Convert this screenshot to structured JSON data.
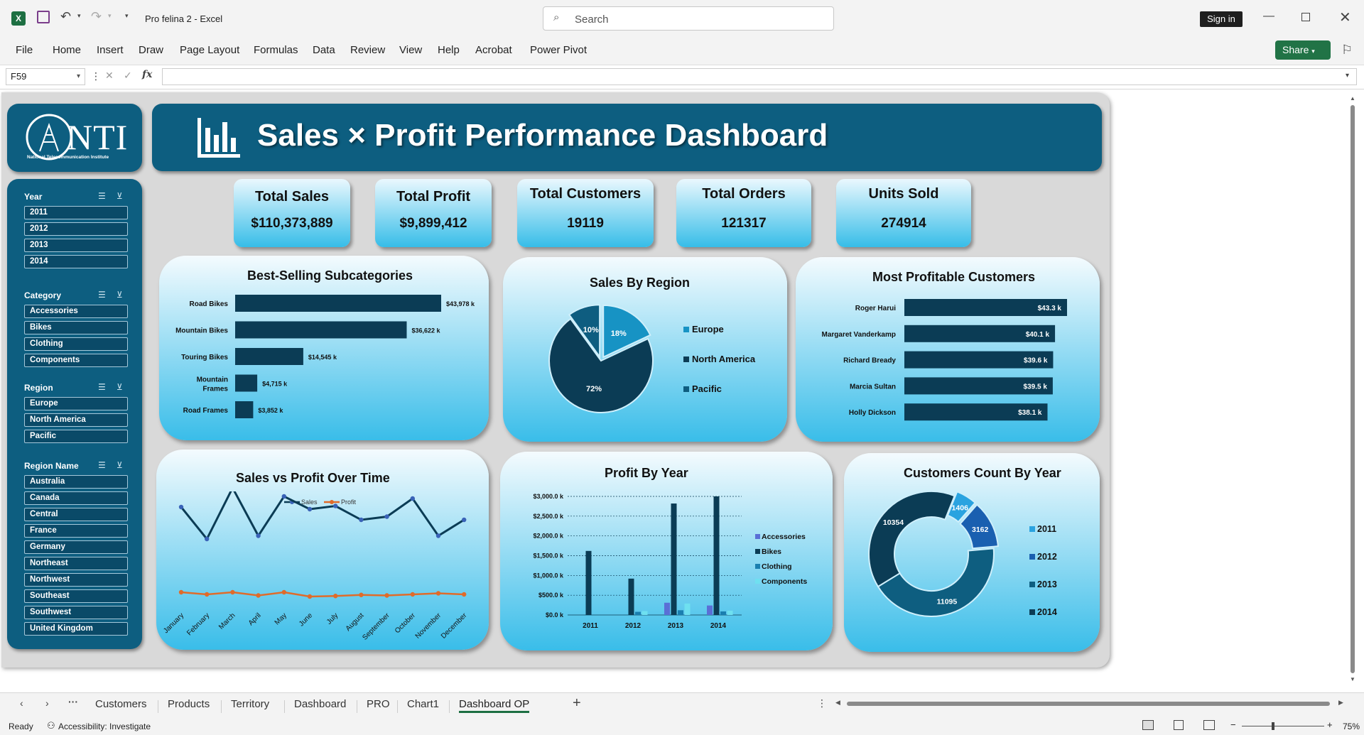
{
  "window": {
    "title": "Pro felina 2  -  Excel",
    "search_placeholder": "Search",
    "sign_in": "Sign in"
  },
  "ribbon": {
    "tabs": [
      "File",
      "Home",
      "Insert",
      "Draw",
      "Page Layout",
      "Formulas",
      "Data",
      "Review",
      "View",
      "Help",
      "Acrobat",
      "Power Pivot"
    ],
    "share": "Share"
  },
  "formula": {
    "name_box": "F59",
    "fx": "fx",
    "content": ""
  },
  "dashboard": {
    "title": "Sales × Profit Performance Dashboard",
    "logo": {
      "text": "NTI",
      "subtitle": "National Telecommunication Institute"
    },
    "kpis": [
      {
        "label": "Total Sales",
        "value": "$110,373,889"
      },
      {
        "label": "Total Profit",
        "value": "$9,899,412"
      },
      {
        "label": "Total Customers",
        "value": "19119"
      },
      {
        "label": "Total Orders",
        "value": "121317"
      },
      {
        "label": "Units Sold",
        "value": "274914"
      }
    ],
    "slicers": [
      {
        "title": "Year",
        "items": [
          "2011",
          "2012",
          "2013",
          "2014"
        ]
      },
      {
        "title": "Category",
        "items": [
          "Accessories",
          "Bikes",
          "Clothing",
          "Components"
        ]
      },
      {
        "title": "Region",
        "items": [
          "Europe",
          "North America",
          "Pacific"
        ]
      },
      {
        "title": "Region Name",
        "items": [
          "Australia",
          "Canada",
          "Central",
          "France",
          "Germany",
          "Northeast",
          "Northwest",
          "Southeast",
          "Southwest",
          "United Kingdom"
        ]
      }
    ],
    "charts": {
      "subcategories": {
        "title": "Best-Selling Subcategories"
      },
      "region": {
        "title": "Sales By Region"
      },
      "customers": {
        "title": "Most Profitable Customers"
      },
      "time": {
        "title": "Sales vs Profit Over Time"
      },
      "profit_year": {
        "title": "Profit By Year"
      },
      "cust_year": {
        "title": "Customers Count By Year"
      }
    }
  },
  "chart_data": [
    {
      "type": "bar",
      "orientation": "horizontal",
      "title": "Best-Selling Subcategories",
      "categories": [
        "Road Bikes",
        "Mountain Bikes",
        "Touring Bikes",
        "Mountain Frames",
        "Road Frames"
      ],
      "values": [
        43978,
        36622,
        14545,
        4715,
        3852
      ],
      "labels": [
        "$43,978 k",
        "$36,622 k",
        "$14,545 k",
        "$4,715 k",
        "$3,852 k"
      ],
      "color": "#0b3c55"
    },
    {
      "type": "pie",
      "title": "Sales By Region",
      "categories": [
        "Europe",
        "North America",
        "Pacific"
      ],
      "values": [
        18,
        72,
        10
      ],
      "labels": [
        "18%",
        "72%",
        "10%"
      ],
      "colors": [
        "#1793c4",
        "#0b3c55",
        "#0e5d80"
      ],
      "legend": "right"
    },
    {
      "type": "bar",
      "orientation": "horizontal",
      "title": "Most Profitable Customers",
      "categories": [
        "Roger Harui",
        "Margaret Vanderkamp",
        "Richard Bready",
        "Marcia Sultan",
        "Holly Dickson"
      ],
      "values": [
        43.3,
        40.1,
        39.6,
        39.5,
        38.1
      ],
      "labels": [
        "$43.3 k",
        "$40.1 k",
        "$39.6 k",
        "$39.5 k",
        "$38.1 k"
      ],
      "color": "#0b3c55"
    },
    {
      "type": "line",
      "title": "Sales vs Profit Over Time",
      "categories": [
        "January",
        "February",
        "March",
        "April",
        "May",
        "June",
        "July",
        "August",
        "September",
        "October",
        "November",
        "December"
      ],
      "series": [
        {
          "name": "Sales",
          "values": [
            9.2,
            6.2,
            11.0,
            6.5,
            10.2,
            9.0,
            9.3,
            8.0,
            8.3,
            10.0,
            6.5,
            8.0
          ],
          "color": "#0b3c55"
        },
        {
          "name": "Profit",
          "values": [
            1.2,
            1.0,
            1.2,
            0.9,
            1.2,
            0.8,
            0.85,
            0.95,
            0.9,
            1.0,
            1.1,
            1.0
          ],
          "color": "#e06b2a"
        }
      ],
      "legend": "top",
      "axis": "none"
    },
    {
      "type": "bar",
      "title": "Profit By Year",
      "categories": [
        "2011",
        "2012",
        "2013",
        "2014"
      ],
      "series": [
        {
          "name": "Accessories",
          "values": [
            0,
            0,
            310,
            240
          ],
          "color": "#5a6fd6"
        },
        {
          "name": "Bikes",
          "values": [
            1620,
            920,
            2820,
            3000
          ],
          "color": "#0b3c55"
        },
        {
          "name": "Clothing",
          "values": [
            0,
            80,
            120,
            90
          ],
          "color": "#1a7fb0"
        },
        {
          "name": "Components",
          "values": [
            0,
            100,
            290,
            110
          ],
          "color": "#6fe0f0"
        }
      ],
      "ylim": [
        0,
        3000
      ],
      "yticks": [
        "$0.0 k",
        "$500.0 k",
        "$1,000.0 k",
        "$1,500.0 k",
        "$2,000.0 k",
        "$2,500.0 k",
        "$3,000.0 k"
      ],
      "legend": "right",
      "grid": true
    },
    {
      "type": "pie",
      "subtype": "doughnut",
      "title": "Customers Count By Year",
      "categories": [
        "2011",
        "2012",
        "2013",
        "2014"
      ],
      "values": [
        1406,
        3162,
        11095,
        10354
      ],
      "colors": [
        "#2aa3e0",
        "#1a5fb0",
        "#0e5e80",
        "#0b3c55"
      ],
      "legend": "right"
    }
  ],
  "sheets": {
    "tabs": [
      "Customers",
      "Products",
      "Territory",
      "Dashboard",
      "PRO",
      "Chart1",
      "Dashboard OP"
    ],
    "active": "Dashboard OP"
  },
  "status": {
    "ready": "Ready",
    "accessibility": "Accessibility: Investigate",
    "zoom": "75%"
  }
}
